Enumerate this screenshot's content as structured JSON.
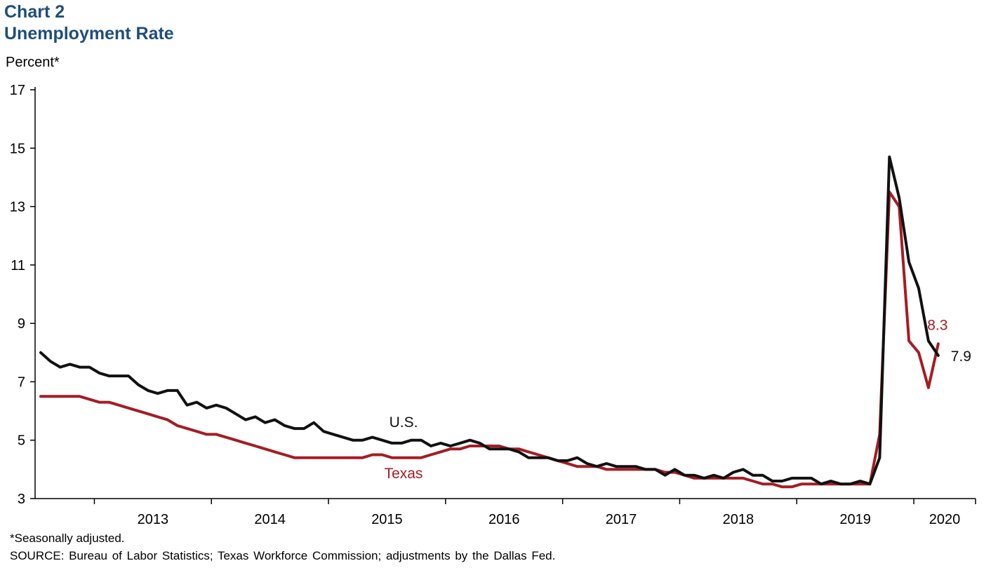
{
  "header": {
    "chart_label": "Chart 2",
    "title": "Unemployment Rate"
  },
  "footer": {
    "footnote": "*Seasonally adjusted.",
    "source": "SOURCE: Bureau of Labor Statistics; Texas Workforce Commission; adjustments by the Dallas Fed."
  },
  "chart_data": {
    "type": "line",
    "title": "Unemployment Rate",
    "ylabel": "Percent*",
    "ylim": [
      3,
      17
    ],
    "yticks": [
      3,
      5,
      7,
      9,
      11,
      13,
      15,
      17
    ],
    "x_tick_labels": [
      "2013",
      "2014",
      "2015",
      "2016",
      "2017",
      "2018",
      "2019",
      "2020"
    ],
    "x_start": "2012-07",
    "x_end": "2020-08",
    "grid": false,
    "series": [
      {
        "name": "U.S.",
        "color": "#111111",
        "end_label": "7.9",
        "values": [
          8.0,
          7.7,
          7.5,
          7.6,
          7.5,
          7.5,
          7.3,
          7.2,
          7.2,
          7.2,
          6.9,
          6.7,
          6.6,
          6.7,
          6.7,
          6.2,
          6.3,
          6.1,
          6.2,
          6.1,
          5.9,
          5.7,
          5.8,
          5.6,
          5.7,
          5.5,
          5.4,
          5.4,
          5.6,
          5.3,
          5.2,
          5.1,
          5.0,
          5.0,
          5.1,
          5.0,
          4.9,
          4.9,
          5.0,
          5.0,
          4.8,
          4.9,
          4.8,
          4.9,
          5.0,
          4.9,
          4.7,
          4.7,
          4.7,
          4.6,
          4.4,
          4.4,
          4.4,
          4.3,
          4.3,
          4.4,
          4.2,
          4.1,
          4.2,
          4.1,
          4.1,
          4.1,
          4.0,
          4.0,
          3.8,
          4.0,
          3.8,
          3.8,
          3.7,
          3.8,
          3.7,
          3.9,
          4.0,
          3.8,
          3.8,
          3.6,
          3.6,
          3.7,
          3.7,
          3.7,
          3.5,
          3.6,
          3.5,
          3.5,
          3.6,
          3.5,
          4.4,
          14.7,
          13.3,
          11.1,
          10.2,
          8.4,
          7.9
        ]
      },
      {
        "name": "Texas",
        "color": "#a51c24",
        "end_label": "8.3",
        "values": [
          6.5,
          6.5,
          6.5,
          6.5,
          6.5,
          6.4,
          6.3,
          6.3,
          6.2,
          6.1,
          6.0,
          5.9,
          5.8,
          5.7,
          5.5,
          5.4,
          5.3,
          5.2,
          5.2,
          5.1,
          5.0,
          4.9,
          4.8,
          4.7,
          4.6,
          4.5,
          4.4,
          4.4,
          4.4,
          4.4,
          4.4,
          4.4,
          4.4,
          4.4,
          4.5,
          4.5,
          4.4,
          4.4,
          4.4,
          4.4,
          4.5,
          4.6,
          4.7,
          4.7,
          4.8,
          4.8,
          4.8,
          4.8,
          4.7,
          4.7,
          4.6,
          4.5,
          4.4,
          4.3,
          4.2,
          4.1,
          4.1,
          4.1,
          4.0,
          4.0,
          4.0,
          4.0,
          4.0,
          4.0,
          3.9,
          3.9,
          3.8,
          3.7,
          3.7,
          3.7,
          3.7,
          3.7,
          3.7,
          3.6,
          3.5,
          3.5,
          3.4,
          3.4,
          3.5,
          3.5,
          3.5,
          3.5,
          3.5,
          3.5,
          3.5,
          3.5,
          5.2,
          13.5,
          13.0,
          8.4,
          8.0,
          6.8,
          8.3
        ]
      }
    ]
  }
}
